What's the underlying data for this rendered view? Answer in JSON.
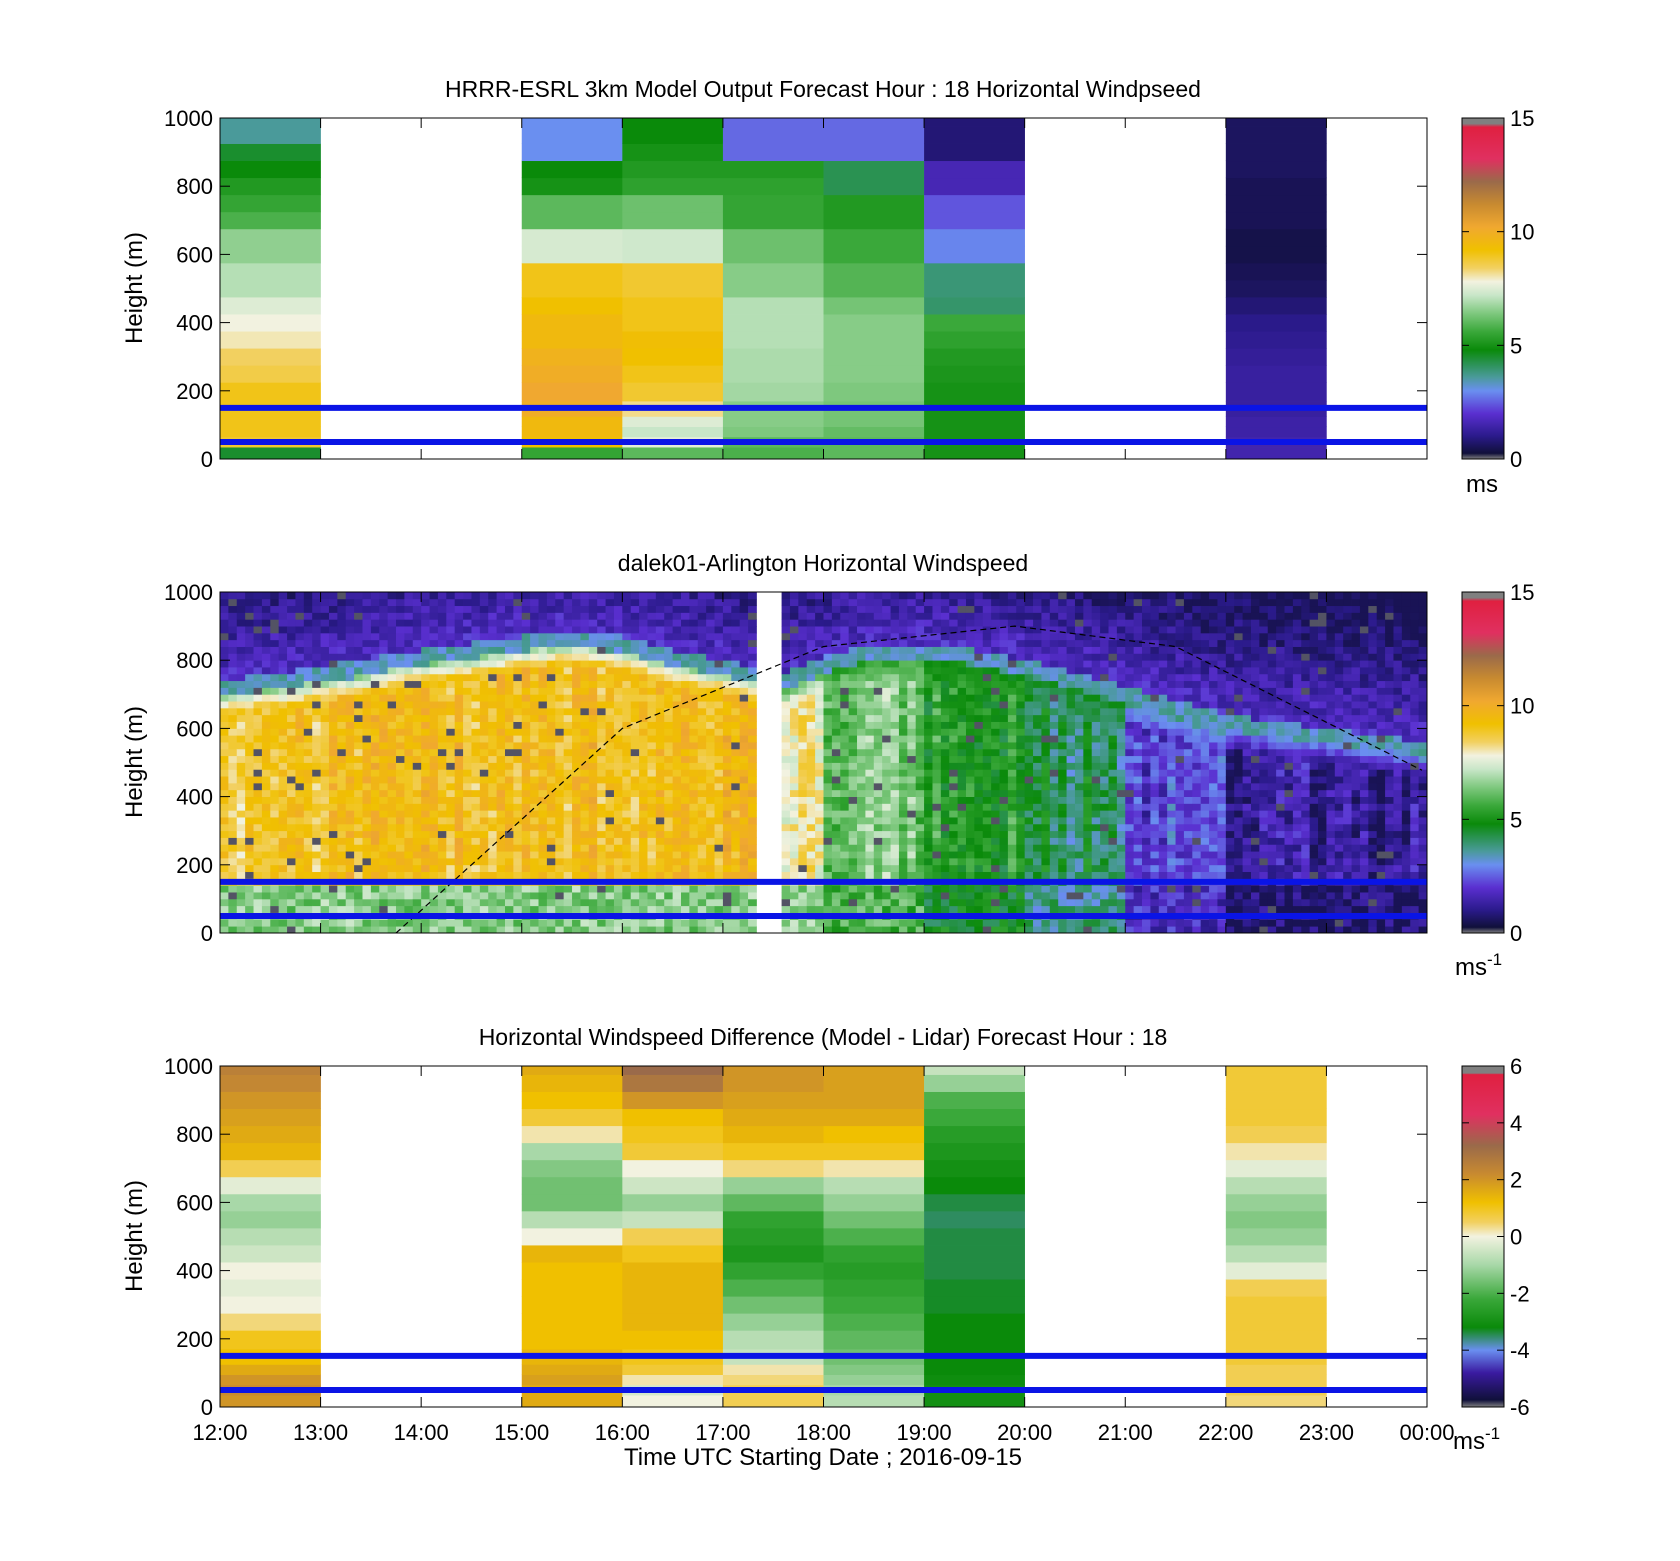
{
  "colors": {
    "windspeed_scale": [
      "#10103a",
      "#2a1a8a",
      "#5a2fd0",
      "#6a8ff0",
      "#4a9a9a",
      "#0a8a0a",
      "#3aa83a",
      "#7ec87e",
      "#c8e6c8",
      "#f2f2e0",
      "#f2d060",
      "#f0c000",
      "#f0a830",
      "#c88a30",
      "#9a6a4a",
      "#e03060",
      "#e02040",
      "#808080"
    ],
    "difference_scale": [
      "#808080",
      "#10103a",
      "#3a1aa0",
      "#6a8ff0",
      "#0a8a0a",
      "#3aa83a",
      "#a8d8a8",
      "#f2f2e0",
      "#f2d060",
      "#f0c000",
      "#c88a30",
      "#9a6a4a",
      "#e03060",
      "#e02040",
      "#808080"
    ],
    "reference_line": "#0a14e6"
  },
  "chart_data": [
    {
      "type": "heatmap",
      "title": "HRRR-ESRL 3km Model Output   Forecast Hour : 18 Horizontal Windpseed",
      "ylabel": "Height (m)",
      "ylim": [
        0,
        1000
      ],
      "yticks": [
        "0",
        "200",
        "400",
        "600",
        "800",
        "1000"
      ],
      "colorbar": {
        "label": "ms",
        "ticks": [
          "0",
          "5",
          "10",
          "15"
        ],
        "range": [
          0,
          15
        ]
      },
      "reference_lines_m": [
        50,
        150
      ],
      "x_hours_utc": [
        12,
        13,
        15,
        16,
        17,
        18,
        19,
        22
      ],
      "heights_m": [
        20,
        50,
        80,
        110,
        140,
        200,
        250,
        300,
        350,
        400,
        450,
        500,
        550,
        600,
        650,
        700,
        750,
        800,
        850,
        900,
        950,
        1000
      ],
      "values": [
        [
          4.5,
          8.8,
          9.0,
          9.0,
          9.0,
          9.0,
          8.6,
          8.4,
          8.0,
          7.8,
          7.5,
          7.0,
          7.0,
          6.6,
          6.6,
          5.8,
          5.5,
          5.2,
          4.8,
          4.5,
          3.6,
          3.6
        ],
        null,
        [
          5.5,
          9.2,
          9.5,
          9.5,
          10.0,
          10.2,
          10.0,
          9.8,
          9.5,
          9.5,
          9.2,
          9.0,
          9.0,
          7.4,
          7.4,
          6.0,
          6.0,
          5.0,
          4.8,
          3.0,
          3.0,
          3.0
        ],
        [
          6.0,
          7.6,
          7.2,
          7.5,
          8.2,
          8.8,
          9.0,
          9.2,
          9.3,
          9.0,
          9.0,
          8.8,
          8.8,
          7.3,
          7.3,
          6.2,
          6.2,
          5.4,
          5.2,
          5.0,
          4.8,
          4.8
        ],
        [
          5.8,
          6.0,
          6.4,
          6.5,
          6.5,
          6.8,
          6.9,
          6.9,
          7.0,
          7.0,
          7.0,
          6.5,
          6.5,
          6.2,
          6.2,
          5.5,
          5.5,
          5.4,
          5.2,
          2.6,
          2.6,
          2.6
        ],
        [
          6.0,
          6.0,
          6.1,
          6.3,
          6.3,
          6.4,
          6.5,
          6.5,
          6.5,
          6.5,
          6.3,
          5.9,
          5.9,
          5.6,
          5.6,
          5.2,
          5.2,
          4.2,
          4.2,
          2.6,
          2.6,
          2.6
        ],
        [
          5.0,
          5.0,
          5.0,
          5.0,
          5.0,
          5.0,
          5.1,
          5.2,
          5.4,
          5.6,
          4.0,
          3.9,
          3.9,
          2.9,
          2.9,
          2.4,
          2.4,
          1.6,
          1.6,
          0.8,
          0.8,
          0.8
        ],
        [
          1.5,
          1.5,
          1.4,
          1.4,
          1.3,
          1.3,
          1.3,
          1.2,
          1.1,
          1.0,
          0.8,
          0.6,
          0.5,
          0.4,
          0.4,
          0.5,
          0.5,
          0.5,
          0.6,
          0.6,
          0.6,
          0.6
        ]
      ]
    },
    {
      "type": "heatmap",
      "title": "dalek01-Arlington  Horizontal Windspeed",
      "ylabel": "Height (m)",
      "ylim": [
        0,
        1000
      ],
      "yticks": [
        "0",
        "200",
        "400",
        "600",
        "800",
        "1000"
      ],
      "colorbar": {
        "label": "ms",
        "label_exponent": "-1",
        "ticks": [
          "0",
          "5",
          "10",
          "15"
        ],
        "range": [
          0,
          15
        ]
      },
      "reference_lines_m": [
        50,
        150
      ],
      "data_gap_utc": [
        17.3,
        17.6
      ],
      "jet_top_m": [
        [
          12.0,
          700
        ],
        [
          13.0,
          740
        ],
        [
          14.0,
          790
        ],
        [
          15.0,
          830
        ],
        [
          15.5,
          850
        ],
        [
          16.0,
          830
        ],
        [
          16.5,
          790
        ],
        [
          17.0,
          760
        ],
        [
          17.6,
          720
        ],
        [
          18.0,
          770
        ],
        [
          18.5,
          810
        ],
        [
          19.0,
          810
        ],
        [
          19.5,
          790
        ],
        [
          20.0,
          760
        ],
        [
          20.5,
          720
        ],
        [
          21.0,
          680
        ],
        [
          21.5,
          640
        ],
        [
          22.0,
          600
        ],
        [
          23.0,
          560
        ],
        [
          24.0,
          520
        ]
      ],
      "zones": [
        {
          "start_utc": 12.0,
          "end_utc": 13.5,
          "speed_ms": 9.0
        },
        {
          "start_utc": 13.5,
          "end_utc": 17.3,
          "speed_ms": 9.3
        },
        {
          "start_utc": 17.6,
          "end_utc": 18.0,
          "speed_ms": 7.8
        },
        {
          "start_utc": 18.0,
          "end_utc": 19.0,
          "speed_ms": 6.3
        },
        {
          "start_utc": 19.0,
          "end_utc": 20.0,
          "speed_ms": 5.2
        },
        {
          "start_utc": 20.0,
          "end_utc": 21.0,
          "speed_ms": 4.2
        },
        {
          "start_utc": 21.0,
          "end_utc": 22.0,
          "speed_ms": 2.3
        },
        {
          "start_utc": 22.0,
          "end_utc": 24.0,
          "speed_ms": 1.2
        }
      ],
      "solar_arc_utc": [
        [
          13.75,
          0
        ],
        [
          16.0,
          600
        ],
        [
          18.0,
          840
        ],
        [
          19.9,
          900
        ],
        [
          21.5,
          840
        ],
        [
          24.0,
          470
        ]
      ]
    },
    {
      "type": "heatmap",
      "title": "Horizontal Windspeed Difference (Model - Lidar) Forecast Hour : 18",
      "ylabel": "Height (m)",
      "xlabel": "Time UTC  Starting Date ; 2016-09-15",
      "xticks": [
        "12:00",
        "13:00",
        "14:00",
        "15:00",
        "16:00",
        "17:00",
        "18:00",
        "19:00",
        "20:00",
        "21:00",
        "22:00",
        "23:00",
        "00:00"
      ],
      "ylim": [
        0,
        1000
      ],
      "yticks": [
        "0",
        "200",
        "400",
        "600",
        "800",
        "1000"
      ],
      "colorbar": {
        "label": "ms",
        "label_exponent": "-1",
        "ticks": [
          "-6",
          "-4",
          "-2",
          "0",
          "2",
          "4",
          "6"
        ],
        "range": [
          -6,
          6
        ]
      },
      "reference_lines_m": [
        50,
        150
      ],
      "x_hours_utc": [
        12,
        13,
        15,
        16,
        17,
        18,
        19,
        22
      ],
      "heights_m": [
        20,
        50,
        80,
        110,
        140,
        200,
        250,
        300,
        350,
        400,
        450,
        500,
        550,
        600,
        650,
        700,
        750,
        800,
        850,
        900,
        950,
        1000
      ],
      "values": [
        [
          2.0,
          2.2,
          2.0,
          1.6,
          1.2,
          1.0,
          0.4,
          0.0,
          -0.2,
          0.0,
          -0.5,
          -0.8,
          -1.2,
          -1.0,
          -0.2,
          0.6,
          1.4,
          1.6,
          1.8,
          2.0,
          2.3,
          2.5
        ],
        null,
        [
          1.6,
          1.6,
          1.8,
          1.6,
          1.4,
          1.2,
          1.2,
          1.2,
          1.2,
          1.2,
          1.4,
          0.0,
          -0.8,
          -1.6,
          -1.6,
          -1.4,
          -1.0,
          0.2,
          0.8,
          1.2,
          1.4,
          1.6
        ],
        [
          0.0,
          -0.4,
          0.2,
          0.8,
          1.0,
          1.2,
          1.4,
          1.4,
          1.4,
          1.4,
          1.0,
          0.6,
          -0.6,
          -1.2,
          -0.5,
          0.0,
          0.8,
          1.0,
          1.2,
          2.0,
          2.8,
          3.2
        ],
        [
          0.6,
          0.6,
          0.4,
          0.2,
          -0.6,
          -0.8,
          -1.2,
          -1.6,
          -2.0,
          -2.4,
          -2.8,
          -2.6,
          -2.4,
          -1.8,
          -1.2,
          0.4,
          1.0,
          1.4,
          1.6,
          1.8,
          2.0,
          2.0
        ],
        [
          -0.8,
          -1.0,
          -1.2,
          -1.4,
          -1.6,
          -1.8,
          -2.0,
          -2.2,
          -2.4,
          -2.6,
          -2.4,
          -2.0,
          -1.6,
          -1.2,
          -0.8,
          0.2,
          1.0,
          1.2,
          1.6,
          1.8,
          1.8,
          1.8
        ],
        [
          -3.0,
          -3.0,
          -3.1,
          -3.2,
          -3.2,
          -3.2,
          -3.2,
          -3.3,
          -3.3,
          -3.4,
          -3.4,
          -3.4,
          -3.5,
          -3.4,
          -3.2,
          -3.0,
          -2.8,
          -2.6,
          -2.2,
          -2.0,
          -1.2,
          -0.6
        ],
        [
          0.4,
          0.6,
          0.6,
          0.6,
          0.8,
          0.8,
          0.8,
          0.8,
          0.6,
          -0.2,
          -0.8,
          -1.2,
          -1.4,
          -1.2,
          -0.8,
          -0.2,
          0.2,
          0.6,
          0.8,
          0.8,
          0.8,
          0.8
        ]
      ]
    }
  ]
}
